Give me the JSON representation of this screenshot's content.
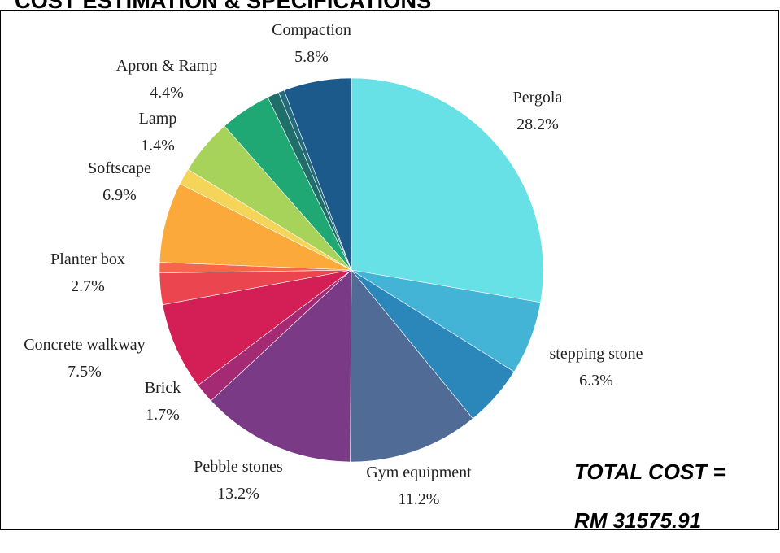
{
  "header": {
    "title": "COST ESTIMATION & SPECIFICATIONS"
  },
  "total": {
    "line1": "TOTAL COST =",
    "line2": "RM 31575.91"
  },
  "chart_data": {
    "type": "pie",
    "title": "",
    "start": "top, clockwise",
    "slices": [
      {
        "label": "Pergola",
        "value": 28.2,
        "pct": "28.2%",
        "color": "#67e0e6",
        "labeled": true
      },
      {
        "label": "stepping stone",
        "value": 6.3,
        "pct": "6.3%",
        "color": "#43b4d6",
        "labeled": true
      },
      {
        "label": "",
        "value": 5.3,
        "pct": "",
        "color": "#2b86b9",
        "labeled": false
      },
      {
        "label": "Gym equipment",
        "value": 11.2,
        "pct": "11.2%",
        "color": "#4f6b96",
        "labeled": true
      },
      {
        "label": "Pebble stones",
        "value": 13.2,
        "pct": "13.2%",
        "color": "#7a3a85",
        "labeled": true
      },
      {
        "label": "Brick",
        "value": 1.7,
        "pct": "1.7%",
        "color": "#a52a74",
        "labeled": true
      },
      {
        "label": "Concrete walkway",
        "value": 7.5,
        "pct": "7.5%",
        "color": "#d31f56",
        "labeled": true
      },
      {
        "label": "Planter box",
        "value": 2.7,
        "pct": "2.7%",
        "color": "#eb4650",
        "labeled": true
      },
      {
        "label": "",
        "value": 0.9,
        "pct": "",
        "color": "#f7664a",
        "labeled": false
      },
      {
        "label": "Softscape",
        "value": 6.9,
        "pct": "6.9%",
        "color": "#fba93a",
        "labeled": true
      },
      {
        "label": "Lamp",
        "value": 1.4,
        "pct": "1.4%",
        "color": "#f4d55a",
        "labeled": true
      },
      {
        "label": "",
        "value": 4.8,
        "pct": "",
        "color": "#a8d35a",
        "labeled": false
      },
      {
        "label": "Apron & Ramp",
        "value": 4.4,
        "pct": "4.4%",
        "color": "#1fa873",
        "labeled": true
      },
      {
        "label": "",
        "value": 1.0,
        "pct": "",
        "color": "#1f6e6a",
        "labeled": false
      },
      {
        "label": "",
        "value": 0.5,
        "pct": "",
        "color": "#256a7a",
        "labeled": false
      },
      {
        "label": "Compaction",
        "value": 5.8,
        "pct": "5.8%",
        "color": "#1c5a8c",
        "labeled": true
      }
    ]
  }
}
